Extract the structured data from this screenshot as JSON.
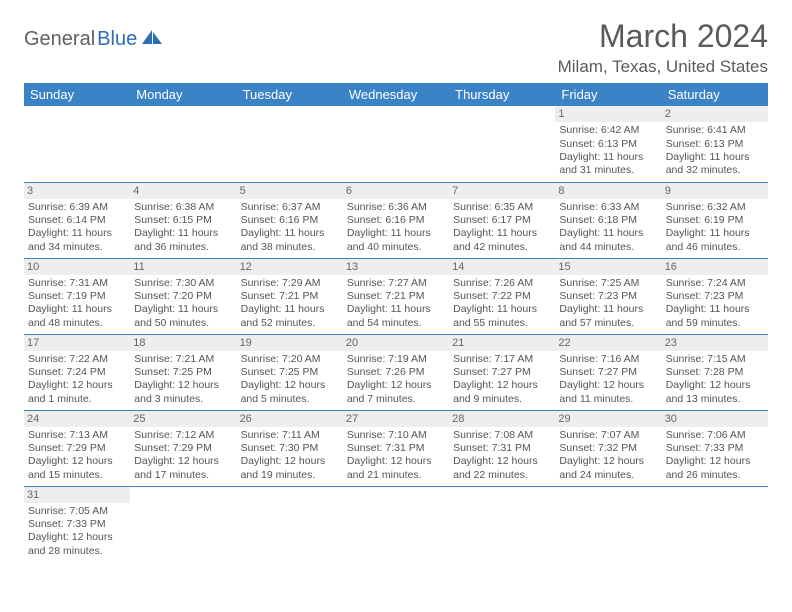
{
  "logo": {
    "text1": "General",
    "text2": "Blue"
  },
  "title": "March 2024",
  "location": "Milam, Texas, United States",
  "colors": {
    "header_bg": "#3b83c7",
    "header_fg": "#ffffff",
    "cell_border": "#3b83c7",
    "daynum_bg": "#eeeeee",
    "text": "#555555",
    "logo_gray": "#606060",
    "logo_blue": "#2d6fb5"
  },
  "day_headers": [
    "Sunday",
    "Monday",
    "Tuesday",
    "Wednesday",
    "Thursday",
    "Friday",
    "Saturday"
  ],
  "weeks": [
    [
      null,
      null,
      null,
      null,
      null,
      {
        "n": "1",
        "sr": "Sunrise: 6:42 AM",
        "ss": "Sunset: 6:13 PM",
        "dl": "Daylight: 11 hours and 31 minutes."
      },
      {
        "n": "2",
        "sr": "Sunrise: 6:41 AM",
        "ss": "Sunset: 6:13 PM",
        "dl": "Daylight: 11 hours and 32 minutes."
      }
    ],
    [
      {
        "n": "3",
        "sr": "Sunrise: 6:39 AM",
        "ss": "Sunset: 6:14 PM",
        "dl": "Daylight: 11 hours and 34 minutes."
      },
      {
        "n": "4",
        "sr": "Sunrise: 6:38 AM",
        "ss": "Sunset: 6:15 PM",
        "dl": "Daylight: 11 hours and 36 minutes."
      },
      {
        "n": "5",
        "sr": "Sunrise: 6:37 AM",
        "ss": "Sunset: 6:16 PM",
        "dl": "Daylight: 11 hours and 38 minutes."
      },
      {
        "n": "6",
        "sr": "Sunrise: 6:36 AM",
        "ss": "Sunset: 6:16 PM",
        "dl": "Daylight: 11 hours and 40 minutes."
      },
      {
        "n": "7",
        "sr": "Sunrise: 6:35 AM",
        "ss": "Sunset: 6:17 PM",
        "dl": "Daylight: 11 hours and 42 minutes."
      },
      {
        "n": "8",
        "sr": "Sunrise: 6:33 AM",
        "ss": "Sunset: 6:18 PM",
        "dl": "Daylight: 11 hours and 44 minutes."
      },
      {
        "n": "9",
        "sr": "Sunrise: 6:32 AM",
        "ss": "Sunset: 6:19 PM",
        "dl": "Daylight: 11 hours and 46 minutes."
      }
    ],
    [
      {
        "n": "10",
        "sr": "Sunrise: 7:31 AM",
        "ss": "Sunset: 7:19 PM",
        "dl": "Daylight: 11 hours and 48 minutes."
      },
      {
        "n": "11",
        "sr": "Sunrise: 7:30 AM",
        "ss": "Sunset: 7:20 PM",
        "dl": "Daylight: 11 hours and 50 minutes."
      },
      {
        "n": "12",
        "sr": "Sunrise: 7:29 AM",
        "ss": "Sunset: 7:21 PM",
        "dl": "Daylight: 11 hours and 52 minutes."
      },
      {
        "n": "13",
        "sr": "Sunrise: 7:27 AM",
        "ss": "Sunset: 7:21 PM",
        "dl": "Daylight: 11 hours and 54 minutes."
      },
      {
        "n": "14",
        "sr": "Sunrise: 7:26 AM",
        "ss": "Sunset: 7:22 PM",
        "dl": "Daylight: 11 hours and 55 minutes."
      },
      {
        "n": "15",
        "sr": "Sunrise: 7:25 AM",
        "ss": "Sunset: 7:23 PM",
        "dl": "Daylight: 11 hours and 57 minutes."
      },
      {
        "n": "16",
        "sr": "Sunrise: 7:24 AM",
        "ss": "Sunset: 7:23 PM",
        "dl": "Daylight: 11 hours and 59 minutes."
      }
    ],
    [
      {
        "n": "17",
        "sr": "Sunrise: 7:22 AM",
        "ss": "Sunset: 7:24 PM",
        "dl": "Daylight: 12 hours and 1 minute."
      },
      {
        "n": "18",
        "sr": "Sunrise: 7:21 AM",
        "ss": "Sunset: 7:25 PM",
        "dl": "Daylight: 12 hours and 3 minutes."
      },
      {
        "n": "19",
        "sr": "Sunrise: 7:20 AM",
        "ss": "Sunset: 7:25 PM",
        "dl": "Daylight: 12 hours and 5 minutes."
      },
      {
        "n": "20",
        "sr": "Sunrise: 7:19 AM",
        "ss": "Sunset: 7:26 PM",
        "dl": "Daylight: 12 hours and 7 minutes."
      },
      {
        "n": "21",
        "sr": "Sunrise: 7:17 AM",
        "ss": "Sunset: 7:27 PM",
        "dl": "Daylight: 12 hours and 9 minutes."
      },
      {
        "n": "22",
        "sr": "Sunrise: 7:16 AM",
        "ss": "Sunset: 7:27 PM",
        "dl": "Daylight: 12 hours and 11 minutes."
      },
      {
        "n": "23",
        "sr": "Sunrise: 7:15 AM",
        "ss": "Sunset: 7:28 PM",
        "dl": "Daylight: 12 hours and 13 minutes."
      }
    ],
    [
      {
        "n": "24",
        "sr": "Sunrise: 7:13 AM",
        "ss": "Sunset: 7:29 PM",
        "dl": "Daylight: 12 hours and 15 minutes."
      },
      {
        "n": "25",
        "sr": "Sunrise: 7:12 AM",
        "ss": "Sunset: 7:29 PM",
        "dl": "Daylight: 12 hours and 17 minutes."
      },
      {
        "n": "26",
        "sr": "Sunrise: 7:11 AM",
        "ss": "Sunset: 7:30 PM",
        "dl": "Daylight: 12 hours and 19 minutes."
      },
      {
        "n": "27",
        "sr": "Sunrise: 7:10 AM",
        "ss": "Sunset: 7:31 PM",
        "dl": "Daylight: 12 hours and 21 minutes."
      },
      {
        "n": "28",
        "sr": "Sunrise: 7:08 AM",
        "ss": "Sunset: 7:31 PM",
        "dl": "Daylight: 12 hours and 22 minutes."
      },
      {
        "n": "29",
        "sr": "Sunrise: 7:07 AM",
        "ss": "Sunset: 7:32 PM",
        "dl": "Daylight: 12 hours and 24 minutes."
      },
      {
        "n": "30",
        "sr": "Sunrise: 7:06 AM",
        "ss": "Sunset: 7:33 PM",
        "dl": "Daylight: 12 hours and 26 minutes."
      }
    ],
    [
      {
        "n": "31",
        "sr": "Sunrise: 7:05 AM",
        "ss": "Sunset: 7:33 PM",
        "dl": "Daylight: 12 hours and 28 minutes."
      },
      null,
      null,
      null,
      null,
      null,
      null
    ]
  ]
}
